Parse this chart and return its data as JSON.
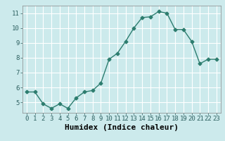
{
  "x": [
    0,
    1,
    2,
    3,
    4,
    5,
    6,
    7,
    8,
    9,
    10,
    11,
    12,
    13,
    14,
    15,
    16,
    17,
    18,
    19,
    20,
    21,
    22,
    23
  ],
  "y": [
    5.7,
    5.7,
    4.9,
    4.6,
    4.9,
    4.6,
    5.3,
    5.7,
    5.8,
    6.3,
    7.9,
    8.3,
    9.1,
    10.0,
    10.7,
    10.75,
    11.1,
    11.0,
    9.9,
    9.9,
    9.1,
    7.6,
    7.9,
    7.9
  ],
  "xlabel": "Humidex (Indice chaleur)",
  "ylim": [
    4.3,
    11.5
  ],
  "xlim": [
    -0.5,
    23.5
  ],
  "yticks": [
    5,
    6,
    7,
    8,
    9,
    10,
    11
  ],
  "xticks": [
    0,
    1,
    2,
    3,
    4,
    5,
    6,
    7,
    8,
    9,
    10,
    11,
    12,
    13,
    14,
    15,
    16,
    17,
    18,
    19,
    20,
    21,
    22,
    23
  ],
  "line_color": "#2d7d6f",
  "marker": "D",
  "marker_size": 2.5,
  "bg_color": "#cceaec",
  "grid_color": "#ffffff",
  "axis_label_fontsize": 8,
  "tick_fontsize": 6.5,
  "linewidth": 1.0
}
